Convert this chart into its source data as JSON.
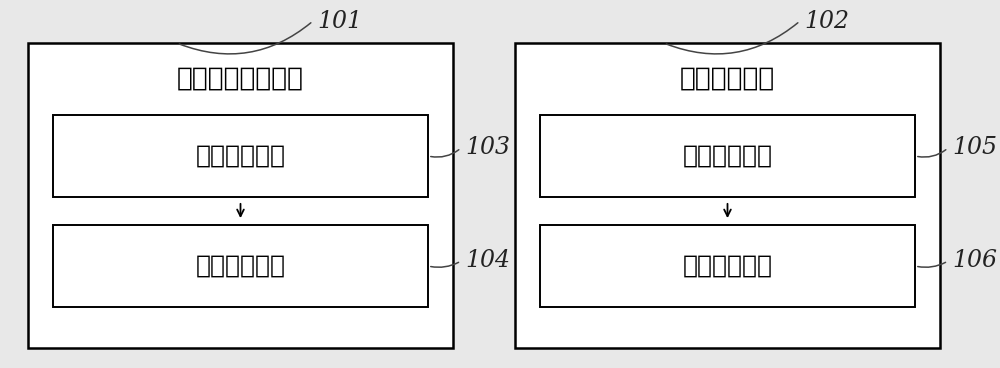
{
  "bg_color": "#e8e8e8",
  "box_bg": "#ffffff",
  "box_edge": "#000000",
  "text_color": "#000000",
  "label_color": "#222222",
  "left_system_label": "数据输入输出系统",
  "left_inner_top_label": "数据输入窗口",
  "left_inner_bot_label": "结果输出窗口",
  "right_system_label": "报告发送系统",
  "right_inner_top_label": "报告输入窗口",
  "right_inner_bot_label": "报告输出窗口",
  "ref_101": "101",
  "ref_102": "102",
  "ref_103": "103",
  "ref_104": "104",
  "ref_105": "105",
  "ref_106": "106",
  "outer_lw": 1.8,
  "inner_lw": 1.4,
  "font_size_system": 19,
  "font_size_inner": 18,
  "font_size_ref": 17
}
